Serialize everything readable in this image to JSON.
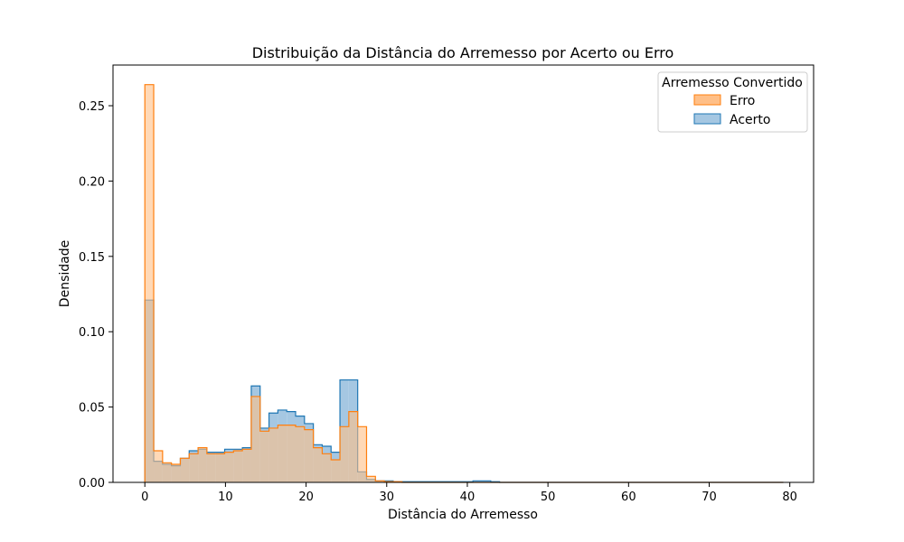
{
  "chart_data": {
    "type": "histogram",
    "title": "Distribuição da Distância do Arremesso por Acerto ou Erro",
    "xlabel": "Distância do Arremesso",
    "ylabel": "Densidade",
    "xlim": [
      -3.95,
      82.95
    ],
    "ylim": [
      0,
      0.277
    ],
    "xticks": [
      0,
      10,
      20,
      30,
      40,
      50,
      60,
      70,
      80
    ],
    "xtick_labels": [
      "0",
      "10",
      "20",
      "30",
      "40",
      "50",
      "60",
      "70",
      "80"
    ],
    "yticks": [
      0.0,
      0.05,
      0.1,
      0.15,
      0.2,
      0.25
    ],
    "ytick_labels": [
      "0.00",
      "0.05",
      "0.10",
      "0.15",
      "0.20",
      "0.25"
    ],
    "grid": false,
    "bin_start": 0,
    "bin_width": 1.1,
    "legend": {
      "title": "Arremesso Convertido",
      "placement": "top-right",
      "entries": [
        "Erro",
        "Acerto"
      ]
    },
    "series": [
      {
        "name": "Acerto",
        "line_color": "#1f77b4",
        "fill_color": "#a5c7e2",
        "values": [
          0.121,
          0.014,
          0.012,
          0.011,
          0.016,
          0.021,
          0.022,
          0.02,
          0.02,
          0.022,
          0.022,
          0.023,
          0.064,
          0.036,
          0.046,
          0.048,
          0.047,
          0.044,
          0.039,
          0.025,
          0.024,
          0.02,
          0.068,
          0.068,
          0.007,
          0.002,
          0.001,
          0.001,
          0.0005,
          0.0005,
          0.0005,
          0.0005,
          0.0005,
          0.0005,
          0.0005,
          0.0005,
          0.0005,
          0.001,
          0.001,
          0.0005,
          0,
          0,
          0,
          0,
          0,
          0,
          0,
          0,
          0,
          0,
          0,
          0,
          0,
          0,
          0,
          0,
          0,
          0,
          0,
          0,
          0,
          0,
          0,
          0,
          0,
          0,
          0,
          0,
          0,
          0,
          0,
          0
        ]
      },
      {
        "name": "Erro",
        "line_color": "#ff7f0e",
        "fill_color": "#ffbf87",
        "values": [
          0.264,
          0.021,
          0.013,
          0.012,
          0.016,
          0.019,
          0.023,
          0.019,
          0.019,
          0.02,
          0.021,
          0.022,
          0.057,
          0.034,
          0.036,
          0.038,
          0.038,
          0.037,
          0.035,
          0.023,
          0.019,
          0.015,
          0.037,
          0.047,
          0.037,
          0.004,
          0.001,
          0.0005,
          0.0005,
          0,
          0,
          0,
          0,
          0,
          0,
          0,
          0,
          0,
          0,
          0,
          0,
          0,
          0,
          0,
          0,
          0,
          0,
          0,
          0,
          0,
          0,
          0,
          0,
          0,
          0,
          0,
          0,
          0,
          0,
          0,
          0,
          0,
          0,
          0,
          0,
          0,
          0,
          0,
          0,
          0,
          0,
          0
        ]
      }
    ]
  }
}
